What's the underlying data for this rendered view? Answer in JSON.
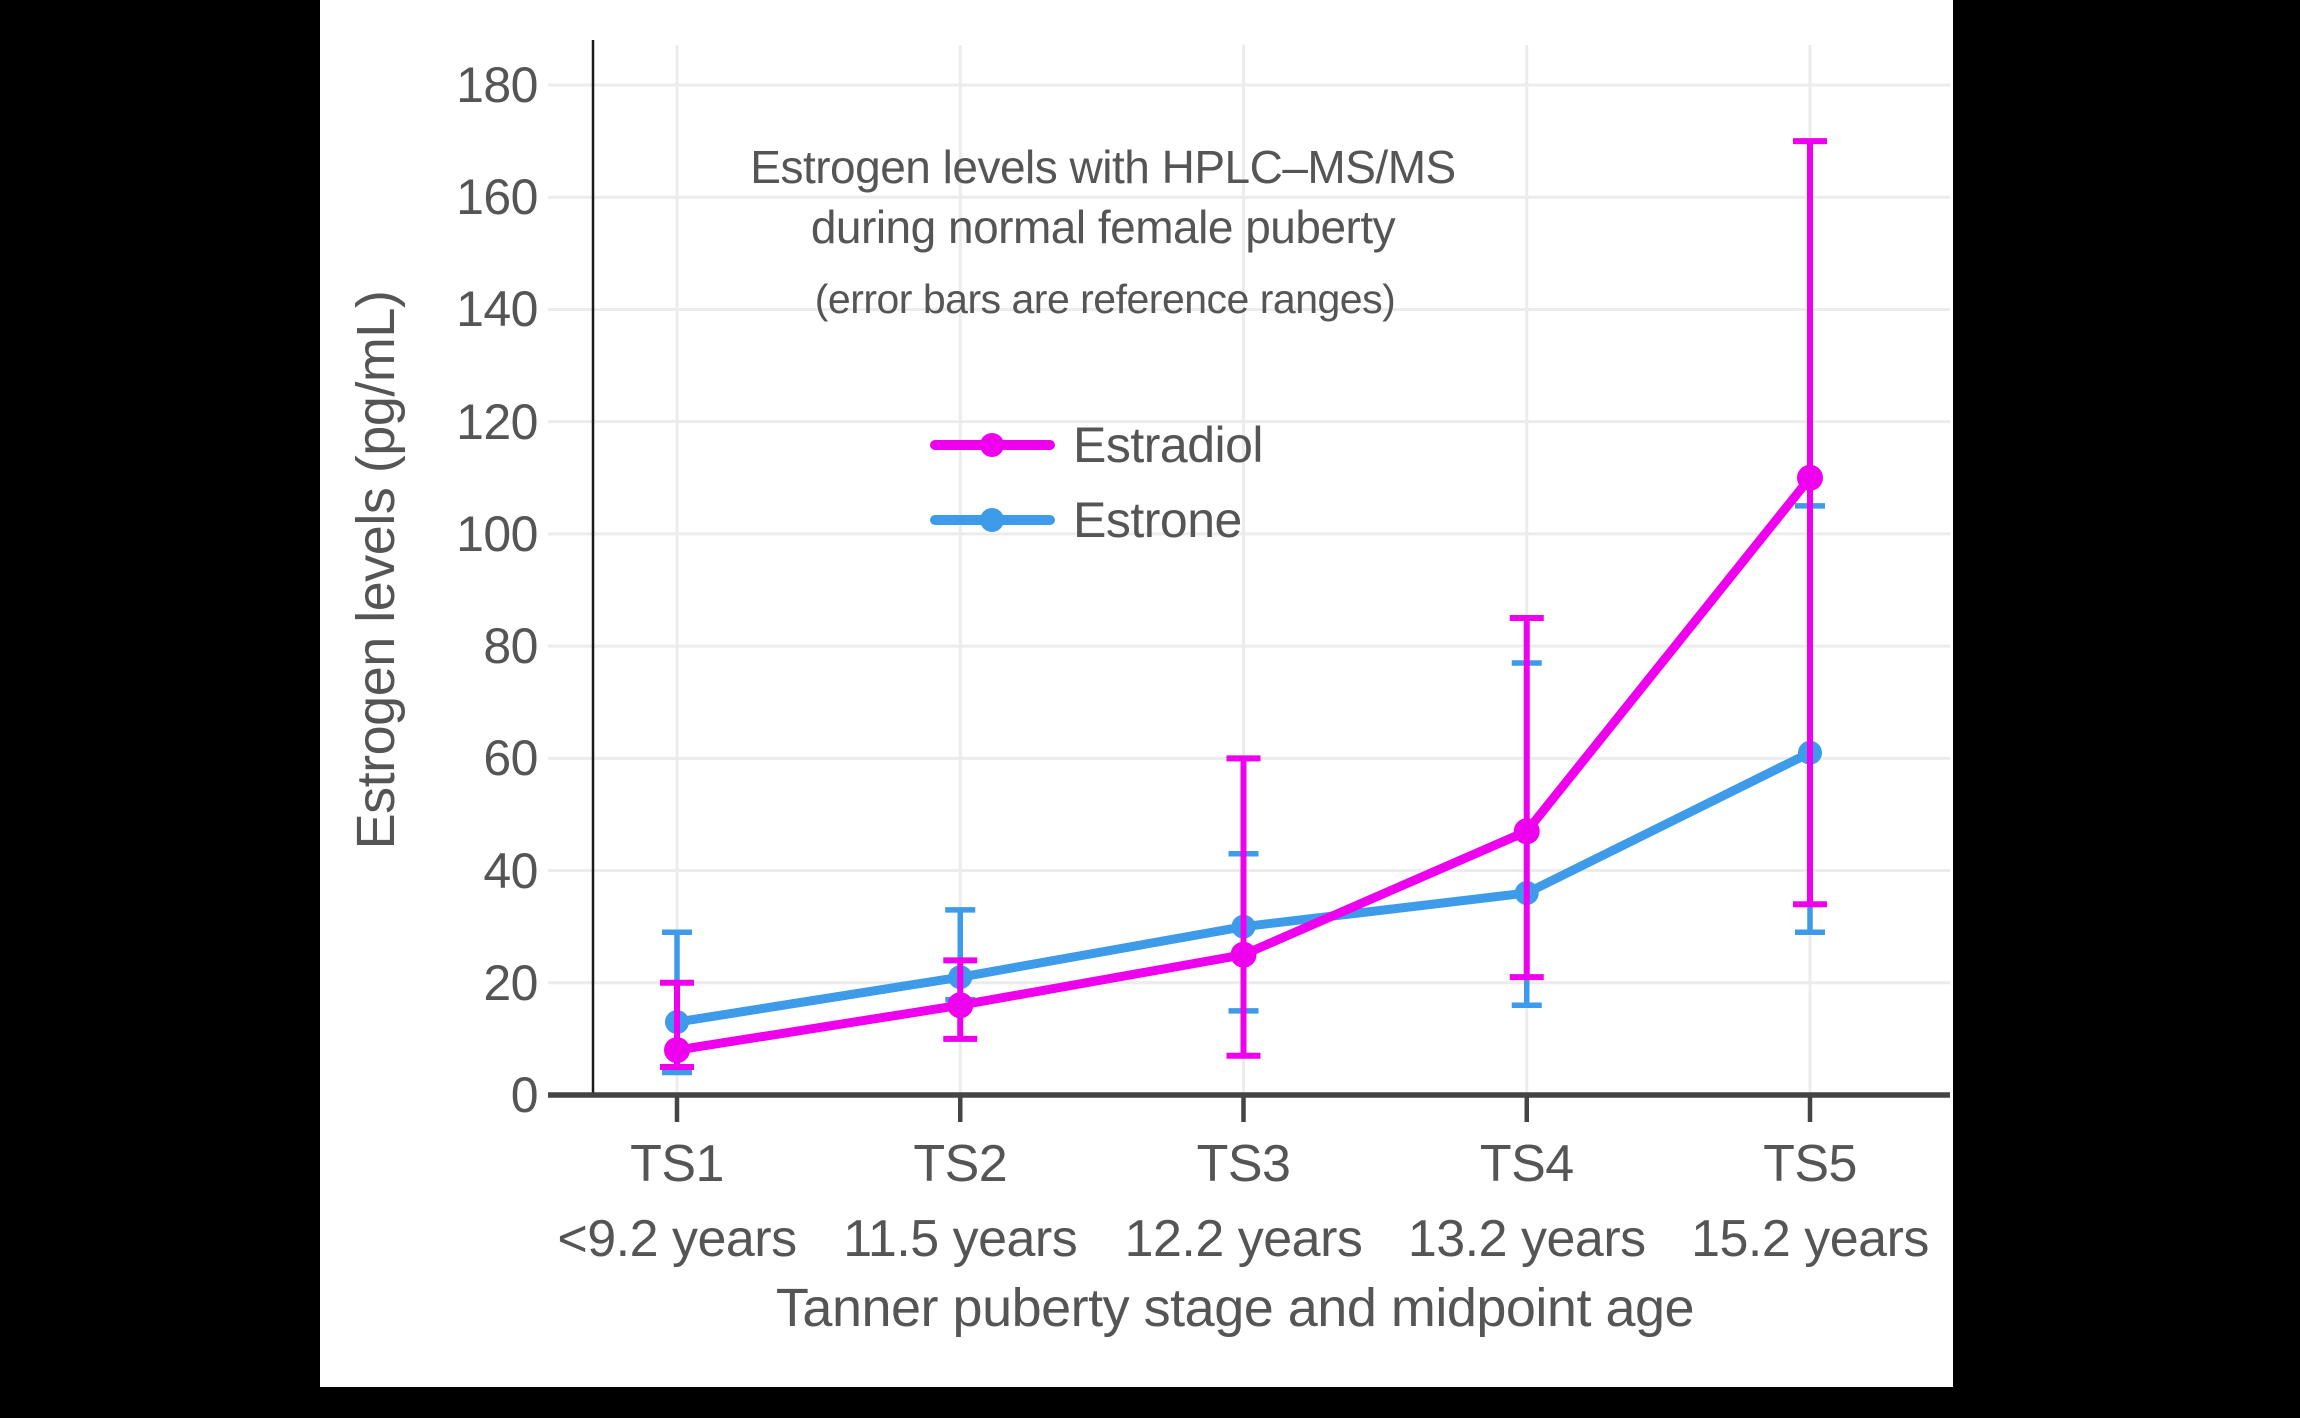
{
  "canvas": {
    "page_bg": "#000000",
    "chart_bg": "#ffffff"
  },
  "chart_data": {
    "type": "line",
    "title_line1": "Estrogen levels with HPLC–MS/MS",
    "title_line2": "during normal female puberty",
    "subtitle": "(error bars are reference ranges)",
    "xlabel": "Tanner puberty stage and midpoint age",
    "ylabel": "Estrogen levels (pg/mL)",
    "categories": [
      "TS1",
      "TS2",
      "TS3",
      "TS4",
      "TS5"
    ],
    "age_labels": [
      "<9.2 years",
      "11.5 years",
      "12.2 years",
      "13.2 years",
      "15.2 years"
    ],
    "y_ticks": [
      0,
      20,
      40,
      60,
      80,
      100,
      120,
      140,
      160,
      180
    ],
    "ylim": [
      0,
      187
    ],
    "grid": true,
    "error_bars": "reference ranges",
    "legend": {
      "position": "inside-upper-center",
      "entries": [
        "Estradiol",
        "Estrone"
      ]
    },
    "series": [
      {
        "name": "Estradiol",
        "color": "#EE00EE",
        "values": [
          8,
          16,
          25,
          47,
          110
        ],
        "lower": [
          5,
          10,
          7,
          21,
          34
        ],
        "upper": [
          20,
          24,
          60,
          85,
          170
        ]
      },
      {
        "name": "Estrone",
        "color": "#3D9BE9",
        "values": [
          13,
          21,
          30,
          36,
          61
        ],
        "lower": [
          4,
          17,
          15,
          16,
          29
        ],
        "upper": [
          29,
          33,
          43,
          77,
          105
        ]
      }
    ],
    "colors": {
      "axis": "#444444",
      "y_axis_line": "#1a1a1a",
      "grid": "#ECECEC",
      "text": "#555555"
    }
  }
}
